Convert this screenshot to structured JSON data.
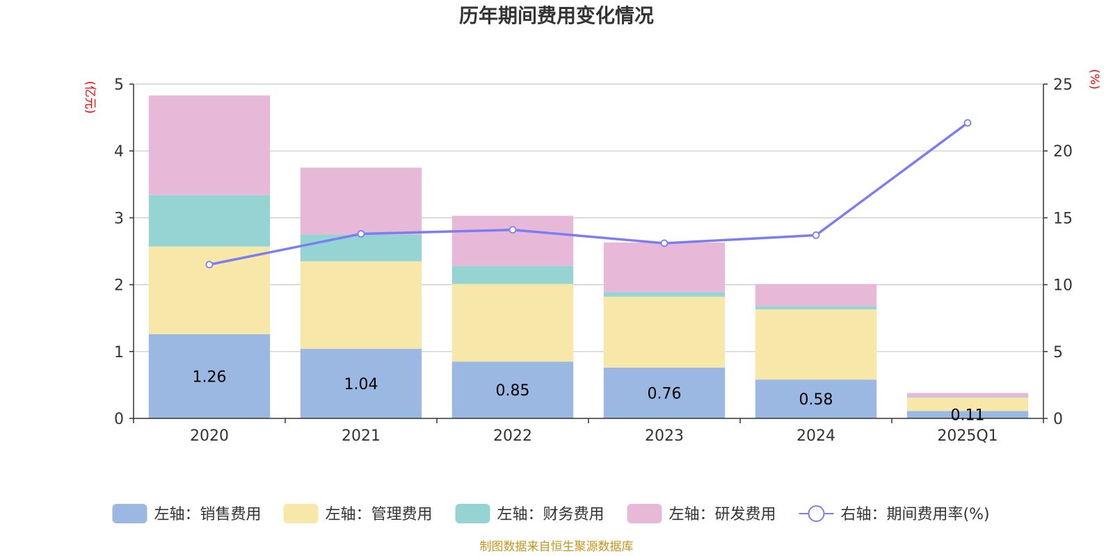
{
  "chart_data": {
    "type": "bar",
    "title": "历年期间费用变化情况",
    "categories": [
      "2020",
      "2021",
      "2022",
      "2023",
      "2024",
      "2025Q1"
    ],
    "y_left": {
      "unit": "(亿元)",
      "ylim": [
        0,
        5
      ],
      "ticks": [
        "0",
        "1",
        "2",
        "3",
        "4",
        "5"
      ]
    },
    "y_right": {
      "unit": "(%)",
      "ylim": [
        0,
        25
      ],
      "ticks": [
        "0",
        "5",
        "10",
        "15",
        "20",
        "25"
      ]
    },
    "series": [
      {
        "name": "左轴：销售费用",
        "axis": "left",
        "type": "bar",
        "stack": "cost",
        "color": "#9bb8e2",
        "values": [
          1.26,
          1.04,
          0.85,
          0.76,
          0.58,
          0.11
        ],
        "labels": [
          "1.26",
          "1.04",
          "0.85",
          "0.76",
          "0.58",
          "0.11"
        ]
      },
      {
        "name": "左轴：管理费用",
        "axis": "left",
        "type": "bar",
        "stack": "cost",
        "color": "#f7e7a8",
        "values": [
          1.31,
          1.31,
          1.16,
          1.06,
          1.05,
          0.2
        ]
      },
      {
        "name": "左轴：财务费用",
        "axis": "left",
        "type": "bar",
        "stack": "cost",
        "color": "#96d4d4",
        "values": [
          0.77,
          0.4,
          0.27,
          0.07,
          0.05,
          0.01
        ]
      },
      {
        "name": "左轴：研发费用",
        "axis": "left",
        "type": "bar",
        "stack": "cost",
        "color": "#e8b8d9",
        "values": [
          1.49,
          1.0,
          0.75,
          0.74,
          0.33,
          0.06
        ]
      },
      {
        "name": "右轴：期间费用率(%)",
        "axis": "right",
        "type": "line",
        "color": "#7b7ef2",
        "values": [
          11.5,
          13.8,
          14.1,
          13.1,
          13.7,
          22.1
        ]
      }
    ],
    "grid": true,
    "legend_position": "bottom"
  },
  "source": "制图数据来自恒生聚源数据库"
}
